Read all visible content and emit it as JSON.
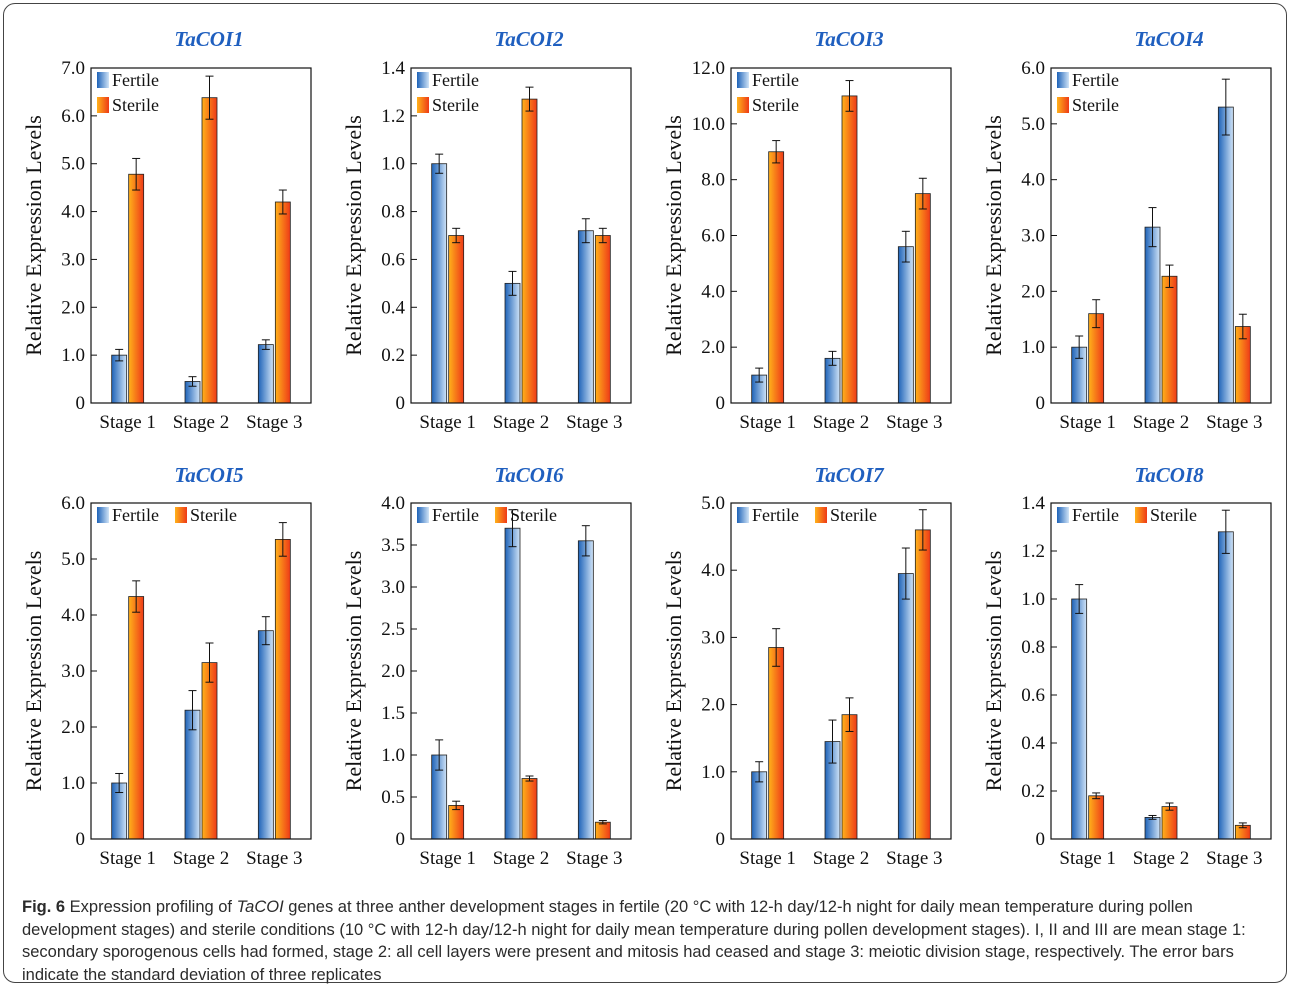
{
  "caption": {
    "label": "Fig. 6",
    "pre": " Expression profiling of ",
    "gene": "TaCOI",
    "post": " genes at three anther development stages in fertile (20 °C with 12-h day/12-h night for daily mean temperature during pollen development stages) and sterile conditions (10 °C with 12-h day/12-h night for daily mean temperature during pollen development stages). I, II and III are mean stage 1: secondary sporogenous cells had formed, stage 2: all cell layers were present and mitosis had ceased and stage 3: meiotic division stage, respectively. The error bars indicate the standard deviation of three replicates"
  },
  "colors": {
    "title": "#1f5fbf",
    "fertile": [
      "#1e63b8",
      "#cfe3f7"
    ],
    "sterile": [
      "#ffb21a",
      "#ee3a18"
    ]
  },
  "chart_data": [
    {
      "type": "bar",
      "title": "TaCOI1",
      "categories": [
        "Stage 1",
        "Stage 2",
        "Stage 3"
      ],
      "ylabel": "Relative Expression Levels",
      "ylim": [
        0,
        7.0
      ],
      "ticks": [
        0,
        1.0,
        2.0,
        3.0,
        4.0,
        5.0,
        6.0,
        7.0
      ],
      "tick_labels": [
        "0",
        "1.0",
        "2.0",
        "3.0",
        "4.0",
        "5.0",
        "6.0",
        "7.0"
      ],
      "legend_layout": "stacked",
      "series": [
        {
          "name": "Fertile",
          "values": [
            1.0,
            0.45,
            1.22
          ],
          "errors": [
            0.12,
            0.1,
            0.1
          ]
        },
        {
          "name": "Sterile",
          "values": [
            4.78,
            6.38,
            4.2
          ],
          "errors": [
            0.33,
            0.45,
            0.25
          ]
        }
      ]
    },
    {
      "type": "bar",
      "title": "TaCOI2",
      "categories": [
        "Stage 1",
        "Stage 2",
        "Stage 3"
      ],
      "ylabel": "Relative Expression Levels",
      "ylim": [
        0,
        1.4
      ],
      "ticks": [
        0,
        0.2,
        0.4,
        0.6,
        0.8,
        1.0,
        1.2,
        1.4
      ],
      "tick_labels": [
        "0",
        "0.2",
        "0.4",
        "0.6",
        "0.8",
        "1.0",
        "1.2",
        "1.4"
      ],
      "legend_layout": "stacked",
      "series": [
        {
          "name": "Fertile",
          "values": [
            1.0,
            0.5,
            0.72
          ],
          "errors": [
            0.04,
            0.05,
            0.05
          ]
        },
        {
          "name": "Sterile",
          "values": [
            0.7,
            1.27,
            0.7
          ],
          "errors": [
            0.03,
            0.05,
            0.03
          ]
        }
      ]
    },
    {
      "type": "bar",
      "title": "TaCOI3",
      "categories": [
        "Stage 1",
        "Stage 2",
        "Stage 3"
      ],
      "ylabel": "Relative Expression Levels",
      "ylim": [
        0,
        12.0
      ],
      "ticks": [
        0,
        2.0,
        4.0,
        6.0,
        8.0,
        10.0,
        12.0
      ],
      "tick_labels": [
        "0",
        "2.0",
        "4.0",
        "6.0",
        "8.0",
        "10.0",
        "12.0"
      ],
      "legend_layout": "stacked",
      "series": [
        {
          "name": "Fertile",
          "values": [
            1.0,
            1.6,
            5.6
          ],
          "errors": [
            0.25,
            0.25,
            0.55
          ]
        },
        {
          "name": "Sterile",
          "values": [
            9.0,
            11.0,
            7.5
          ],
          "errors": [
            0.4,
            0.55,
            0.55
          ]
        }
      ]
    },
    {
      "type": "bar",
      "title": "TaCOI4",
      "categories": [
        "Stage 1",
        "Stage 2",
        "Stage 3"
      ],
      "ylabel": "Relative Expression Levels",
      "ylim": [
        0,
        6.0
      ],
      "ticks": [
        0,
        1.0,
        2.0,
        3.0,
        4.0,
        5.0,
        6.0
      ],
      "tick_labels": [
        "0",
        "1.0",
        "2.0",
        "3.0",
        "4.0",
        "5.0",
        "6.0"
      ],
      "legend_layout": "stacked",
      "series": [
        {
          "name": "Fertile",
          "values": [
            1.0,
            3.15,
            5.3
          ],
          "errors": [
            0.2,
            0.35,
            0.5
          ]
        },
        {
          "name": "Sterile",
          "values": [
            1.6,
            2.27,
            1.37
          ],
          "errors": [
            0.25,
            0.2,
            0.22
          ]
        }
      ]
    },
    {
      "type": "bar",
      "title": "TaCOI5",
      "categories": [
        "Stage 1",
        "Stage 2",
        "Stage 3"
      ],
      "ylabel": "Relative Expression Levels",
      "ylim": [
        0,
        6.0
      ],
      "ticks": [
        0,
        1.0,
        2.0,
        3.0,
        4.0,
        5.0,
        6.0
      ],
      "tick_labels": [
        "0",
        "1.0",
        "2.0",
        "3.0",
        "4.0",
        "5.0",
        "6.0"
      ],
      "legend_layout": "row",
      "series": [
        {
          "name": "Fertile",
          "values": [
            1.0,
            2.3,
            3.72
          ],
          "errors": [
            0.17,
            0.35,
            0.25
          ]
        },
        {
          "name": "Sterile",
          "values": [
            4.33,
            3.15,
            5.35
          ],
          "errors": [
            0.28,
            0.35,
            0.3
          ]
        }
      ]
    },
    {
      "type": "bar",
      "title": "TaCOI6",
      "categories": [
        "Stage 1",
        "Stage 2",
        "Stage 3"
      ],
      "ylabel": "Relative Expression Levels",
      "ylim": [
        0,
        4.0
      ],
      "ticks": [
        0,
        0.5,
        1.0,
        1.5,
        2.0,
        2.5,
        3.0,
        3.5,
        4.0
      ],
      "tick_labels": [
        "0",
        "0.5",
        "1.0",
        "1.5",
        "2.0",
        "2.5",
        "3.0",
        "3.5",
        "4.0"
      ],
      "legend_layout": "row",
      "series": [
        {
          "name": "Fertile",
          "values": [
            1.0,
            3.7,
            3.55
          ],
          "errors": [
            0.18,
            0.22,
            0.18
          ]
        },
        {
          "name": "Sterile",
          "values": [
            0.4,
            0.72,
            0.2
          ],
          "errors": [
            0.05,
            0.03,
            0.02
          ]
        }
      ]
    },
    {
      "type": "bar",
      "title": "TaCOI7",
      "categories": [
        "Stage 1",
        "Stage 2",
        "Stage 3"
      ],
      "ylabel": "Relative Expression Levels",
      "ylim": [
        0,
        5.0
      ],
      "ticks": [
        0,
        1.0,
        2.0,
        3.0,
        4.0,
        5.0
      ],
      "tick_labels": [
        "0",
        "1.0",
        "2.0",
        "3.0",
        "4.0",
        "5.0"
      ],
      "legend_layout": "row",
      "series": [
        {
          "name": "Fertile",
          "values": [
            1.0,
            1.45,
            3.95
          ],
          "errors": [
            0.15,
            0.32,
            0.38
          ]
        },
        {
          "name": "Sterile",
          "values": [
            2.85,
            1.85,
            4.6
          ],
          "errors": [
            0.28,
            0.25,
            0.3
          ]
        }
      ]
    },
    {
      "type": "bar",
      "title": "TaCOI8",
      "categories": [
        "Stage 1",
        "Stage 2",
        "Stage 3"
      ],
      "ylabel": "Relative Expression Levels",
      "ylim": [
        0,
        1.4
      ],
      "ticks": [
        0,
        0.2,
        0.4,
        0.6,
        0.8,
        1.0,
        1.2,
        1.4
      ],
      "tick_labels": [
        "0",
        "0.2",
        "0.4",
        "0.6",
        "0.8",
        "1.0",
        "1.2",
        "1.4"
      ],
      "legend_layout": "row",
      "series": [
        {
          "name": "Fertile",
          "values": [
            1.0,
            0.09,
            1.28
          ],
          "errors": [
            0.06,
            0.008,
            0.09
          ]
        },
        {
          "name": "Sterile",
          "values": [
            0.18,
            0.135,
            0.057
          ],
          "errors": [
            0.012,
            0.015,
            0.01
          ]
        }
      ]
    }
  ]
}
